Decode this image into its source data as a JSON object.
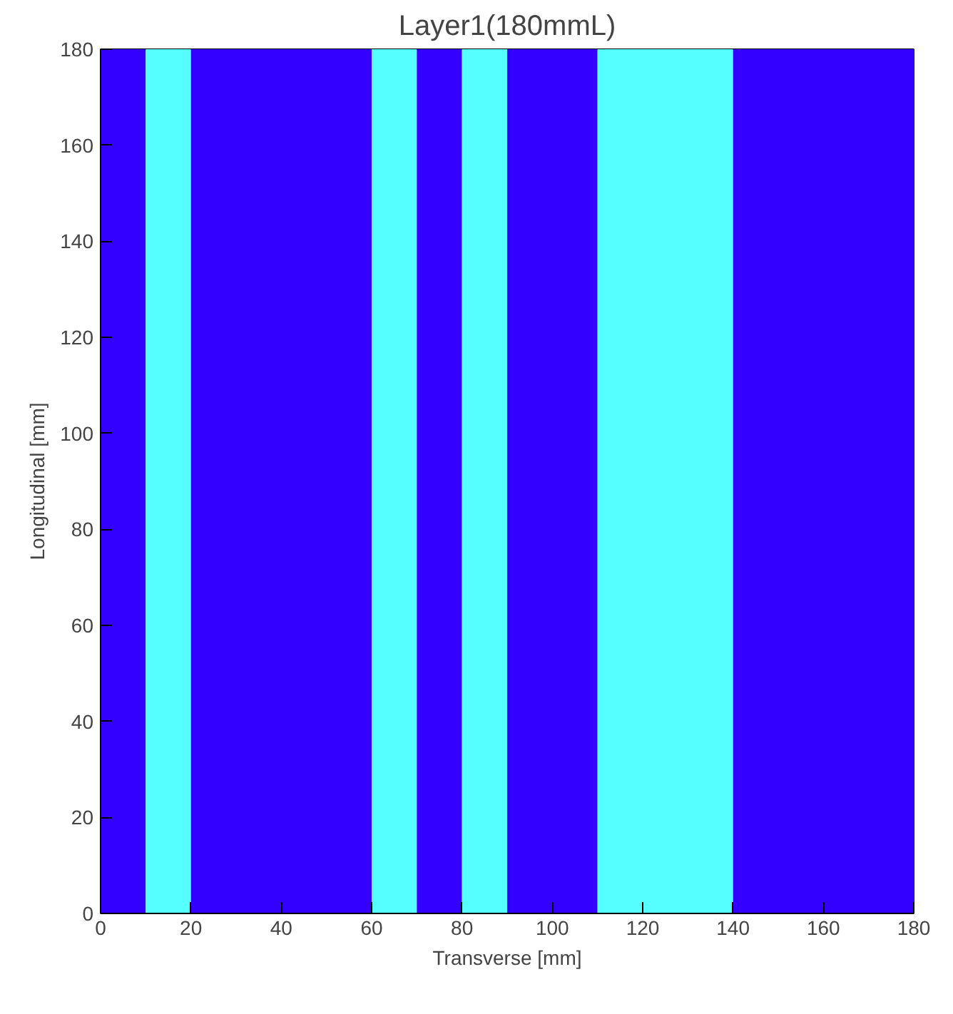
{
  "chart_data": {
    "type": "histogram",
    "title": "Layer1(180mmL)",
    "xlabel": "Transverse [mm]",
    "ylabel": "Longitudinal [mm]",
    "xlim": [
      0,
      180
    ],
    "ylim": [
      0,
      180
    ],
    "xticks": [
      0,
      20,
      40,
      60,
      80,
      100,
      120,
      140,
      160,
      180
    ],
    "yticks": [
      0,
      20,
      40,
      60,
      80,
      100,
      120,
      140,
      160,
      180
    ],
    "bins": [
      0,
      10,
      20,
      60,
      70,
      80,
      90,
      110,
      140,
      180
    ],
    "values": [
      180,
      180,
      180,
      180,
      180,
      180,
      180,
      180,
      180
    ],
    "colors": [
      "#3300ff",
      "#55ffff",
      "#3300ff",
      "#55ffff",
      "#3300ff",
      "#55ffff",
      "#3300ff",
      "#55ffff",
      "#3300ff"
    ]
  }
}
